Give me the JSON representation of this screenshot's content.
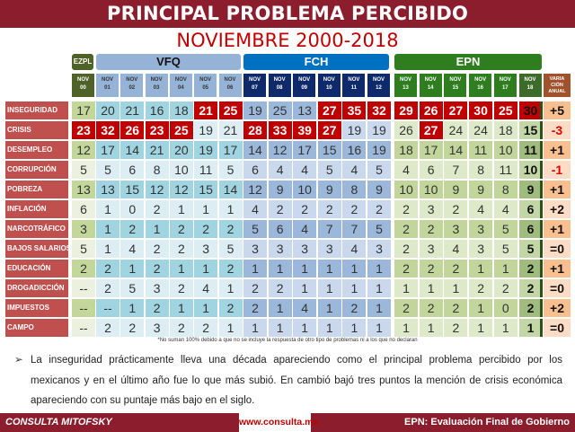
{
  "header": {
    "title": "PRINCIPAL PROBLEMA PERCIBIDO",
    "subtitle": "NOVIEMBRE 2000-2018"
  },
  "groups": [
    {
      "label": "EZPL",
      "color": "#4f6228"
    },
    {
      "label": "VFQ",
      "color": "#95b3d7"
    },
    {
      "label": "FCH",
      "color": "#0070c0"
    },
    {
      "label": "EPN",
      "color": "#2e7d1e"
    }
  ],
  "columns": [
    {
      "l1": "NOV",
      "l2": "00"
    },
    {
      "l1": "NOV",
      "l2": "01"
    },
    {
      "l1": "NOV",
      "l2": "02"
    },
    {
      "l1": "NOV",
      "l2": "03"
    },
    {
      "l1": "NOV",
      "l2": "04"
    },
    {
      "l1": "NOV",
      "l2": "05"
    },
    {
      "l1": "NOV",
      "l2": "06"
    },
    {
      "l1": "NOV",
      "l2": "07"
    },
    {
      "l1": "NOV",
      "l2": "08"
    },
    {
      "l1": "NOV",
      "l2": "09"
    },
    {
      "l1": "NOV",
      "l2": "10"
    },
    {
      "l1": "NOV",
      "l2": "11"
    },
    {
      "l1": "NOV",
      "l2": "12"
    },
    {
      "l1": "NOV",
      "l2": "13"
    },
    {
      "l1": "NOV",
      "l2": "14"
    },
    {
      "l1": "NOV",
      "l2": "15"
    },
    {
      "l1": "NOV",
      "l2": "16"
    },
    {
      "l1": "NOV",
      "l2": "17"
    },
    {
      "l1": "NOV",
      "l2": "18"
    }
  ],
  "variation_header": "VARIA CIÓN ANUAL",
  "rows": [
    {
      "label": "INSEGURIDAD",
      "values": [
        "17",
        "20",
        "21",
        "16",
        "18",
        "21",
        "25",
        "19",
        "25",
        "13",
        "27",
        "35",
        "32",
        "29",
        "26",
        "27",
        "30",
        "25",
        "30"
      ],
      "red": [
        5,
        6,
        10,
        11,
        12,
        13,
        14,
        15,
        16,
        17,
        18
      ],
      "var": "+5"
    },
    {
      "label": "CRISIS",
      "values": [
        "23",
        "32",
        "26",
        "23",
        "25",
        "19",
        "21",
        "28",
        "33",
        "39",
        "27",
        "19",
        "19",
        "26",
        "27",
        "24",
        "24",
        "18",
        "15"
      ],
      "red": [
        0,
        1,
        2,
        3,
        4,
        7,
        8,
        9,
        10,
        14
      ],
      "var": "-3"
    },
    {
      "label": "DESEMPLEO",
      "values": [
        "12",
        "17",
        "14",
        "21",
        "20",
        "19",
        "17",
        "14",
        "12",
        "17",
        "15",
        "16",
        "19",
        "18",
        "17",
        "14",
        "11",
        "10",
        "11"
      ],
      "red": [],
      "var": "+1"
    },
    {
      "label": "CORRUPCIÓN",
      "values": [
        "5",
        "5",
        "6",
        "8",
        "10",
        "11",
        "5",
        "6",
        "4",
        "4",
        "5",
        "4",
        "5",
        "4",
        "6",
        "7",
        "8",
        "11",
        "10"
      ],
      "red": [],
      "var": "-1"
    },
    {
      "label": "POBREZA",
      "values": [
        "13",
        "13",
        "15",
        "12",
        "12",
        "15",
        "14",
        "12",
        "9",
        "10",
        "9",
        "8",
        "9",
        "10",
        "10",
        "9",
        "9",
        "8",
        "9"
      ],
      "red": [],
      "var": "+1"
    },
    {
      "label": "INFLACIÓN",
      "values": [
        "6",
        "1",
        "0",
        "2",
        "1",
        "1",
        "1",
        "4",
        "2",
        "2",
        "2",
        "2",
        "2",
        "2",
        "3",
        "2",
        "4",
        "4",
        "6"
      ],
      "red": [],
      "var": "+2"
    },
    {
      "label": "NARCOTRÁFICO",
      "values": [
        "3",
        "1",
        "2",
        "1",
        "2",
        "2",
        "2",
        "5",
        "6",
        "4",
        "7",
        "7",
        "5",
        "2",
        "2",
        "3",
        "3",
        "5",
        "6"
      ],
      "red": [],
      "var": "+1"
    },
    {
      "label": "BAJOS SALARIOS",
      "values": [
        "5",
        "1",
        "4",
        "2",
        "2",
        "3",
        "5",
        "3",
        "3",
        "3",
        "3",
        "4",
        "3",
        "2",
        "3",
        "4",
        "3",
        "5",
        "5"
      ],
      "red": [],
      "var": "=0"
    },
    {
      "label": "EDUCACIÓN",
      "values": [
        "2",
        "2",
        "1",
        "2",
        "1",
        "1",
        "2",
        "1",
        "1",
        "1",
        "1",
        "1",
        "1",
        "2",
        "2",
        "2",
        "1",
        "1",
        "2"
      ],
      "red": [],
      "var": "+1"
    },
    {
      "label": "DROGADICCIÓN",
      "values": [
        "--",
        "2",
        "5",
        "3",
        "2",
        "4",
        "1",
        "2",
        "2",
        "1",
        "1",
        "1",
        "1",
        "1",
        "1",
        "1",
        "2",
        "2",
        "2"
      ],
      "red": [],
      "var": "=0"
    },
    {
      "label": "IMPUESTOS",
      "values": [
        "--",
        "--",
        "1",
        "2",
        "1",
        "1",
        "2",
        "2",
        "1",
        "4",
        "1",
        "2",
        "1",
        "2",
        "2",
        "2",
        "1",
        "0",
        "2"
      ],
      "red": [],
      "var": "+2"
    },
    {
      "label": "CAMPO",
      "values": [
        "--",
        "2",
        "2",
        "3",
        "2",
        "2",
        "1",
        "1",
        "1",
        "1",
        "1",
        "1",
        "1",
        "1",
        "1",
        "2",
        "1",
        "1",
        "1"
      ],
      "red": [],
      "var": "=0"
    }
  ],
  "note": "*No suman 100% debido a que no se incluye la respuesta de otro tipo de problemas ni a los que no declaran",
  "bullet": "La inseguridad prácticamente lleva una década apareciendo como el principal problema percibido por los mexicanos y en el último año fue lo que más subió. En cambió bajó tres puntos la mención de crisis económica apareciendo con su puntaje más bajo en el siglo.",
  "footer": {
    "brand": "CONSULTA MITOFSKY",
    "url": "www.consulta.mx",
    "right": "EPN: Evaluación Final de Gobierno"
  },
  "colors": {
    "title_bar": "#8b1d2c",
    "subtitle": "#c00000",
    "highlight": "#c00000"
  }
}
